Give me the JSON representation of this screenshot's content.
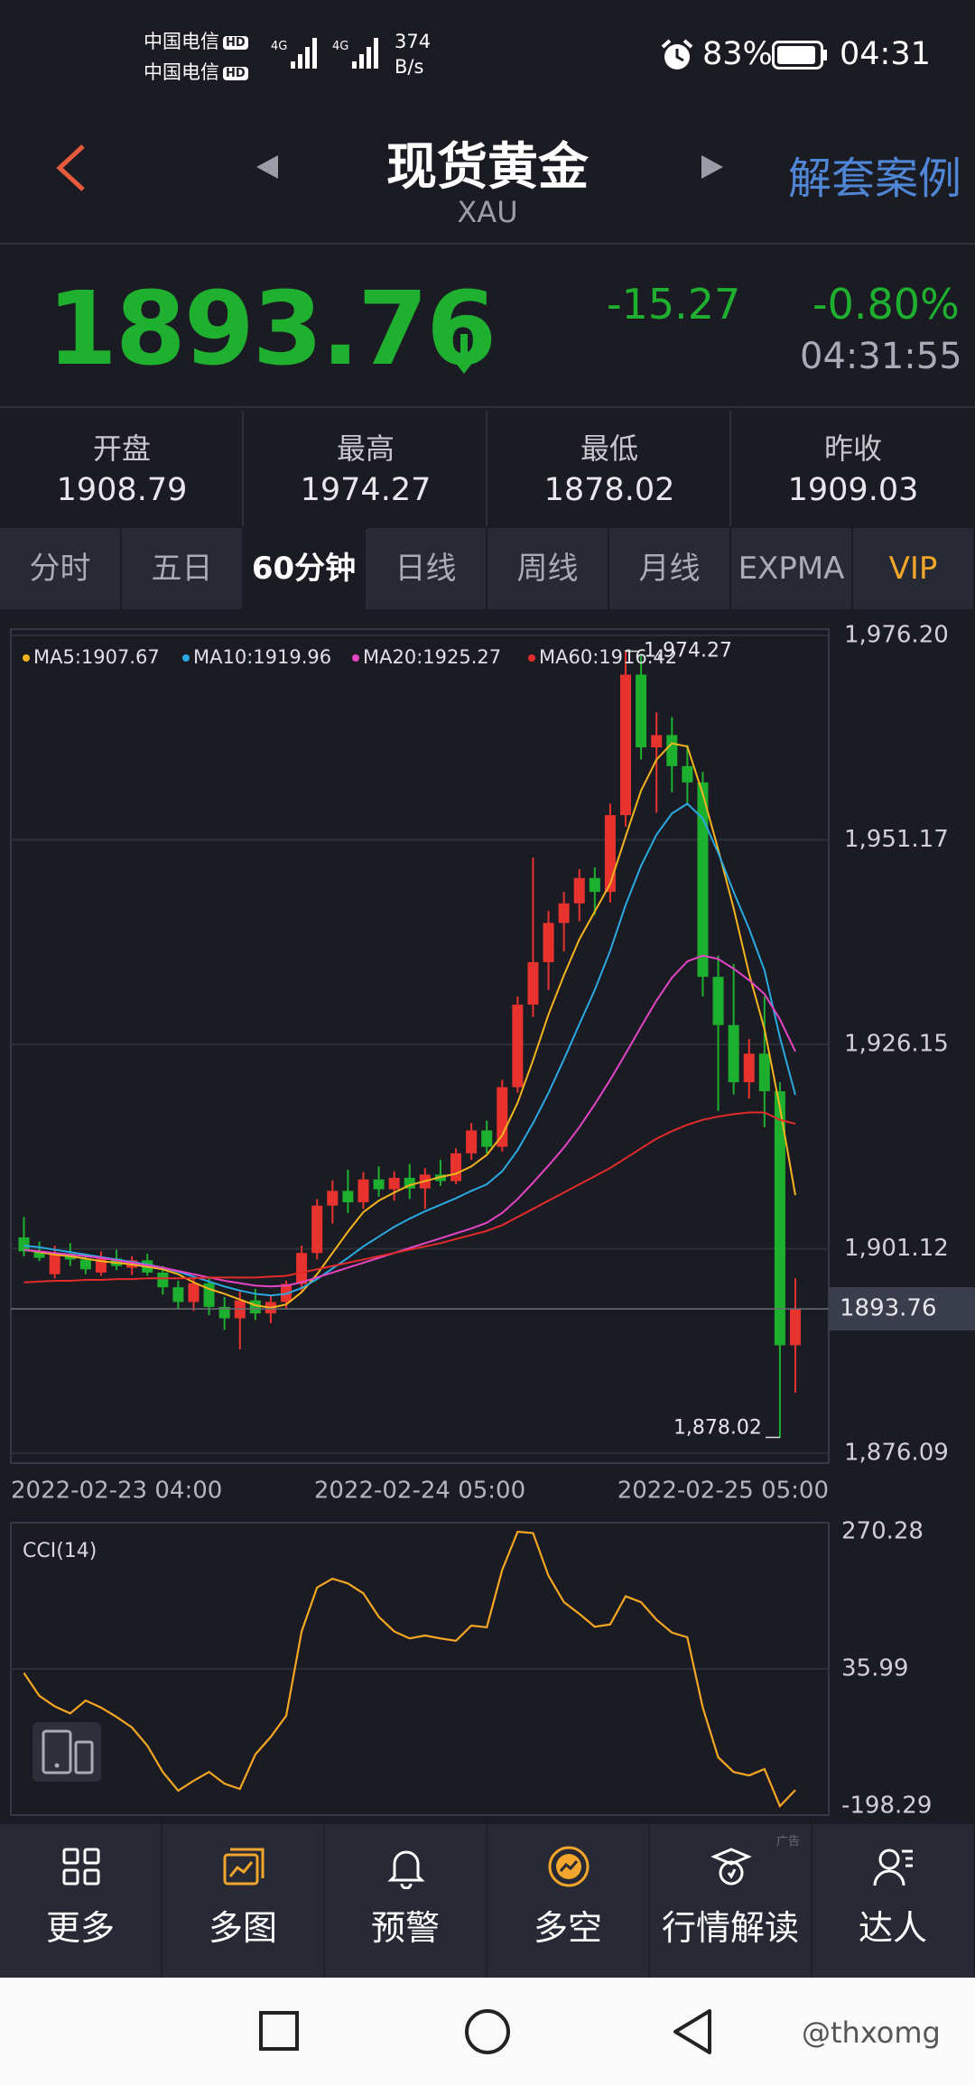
{
  "status_bar": {
    "carriers": [
      "中国电信",
      "中国电信"
    ],
    "hd": "HD",
    "net": "4G",
    "speed": "374",
    "speed_unit": "B/s",
    "battery": "83%",
    "time": "04:31"
  },
  "header": {
    "title": "现货黄金",
    "subtitle": "XAU",
    "action": "解套案例"
  },
  "quote": {
    "price": 1893.76,
    "change": -15.27,
    "change_pct": "-0.80%",
    "time": "04:31:55"
  },
  "stats": [
    {
      "label": "开盘",
      "value": "1908.79"
    },
    {
      "label": "最高",
      "value": "1974.27"
    },
    {
      "label": "最低",
      "value": "1878.02"
    },
    {
      "label": "昨收",
      "value": "1909.03"
    }
  ],
  "tabs": [
    "分时",
    "五日",
    "60分钟",
    "日线",
    "周线",
    "月线",
    "EXPMA",
    "VIP"
  ],
  "chart_data": [
    {
      "type": "candlestick",
      "up_color": "#e8322e",
      "down_color": "#1db02f",
      "ylim": [
        1876.09,
        1976.2
      ],
      "yticks": [
        {
          "value": 1976.2,
          "label": "1,976.20"
        },
        {
          "value": 1951.17,
          "label": "1,951.17"
        },
        {
          "value": 1926.15,
          "label": "1,926.15"
        },
        {
          "value": 1901.12,
          "label": "1,901.12"
        },
        {
          "value": 1876.09,
          "label": "1,876.09"
        }
      ],
      "xticks": [
        "2022-02-23 04:00",
        "2022-02-24 05:00",
        "2022-02-25 05:00"
      ],
      "grid": true,
      "ohlc": [
        [
          1902.5,
          1905.0,
          1900.2,
          1900.8
        ],
        [
          1900.8,
          1902.0,
          1899.6,
          1900.0
        ],
        [
          1898.0,
          1901.5,
          1897.5,
          1900.5
        ],
        [
          1900.5,
          1901.8,
          1899.0,
          1899.8
        ],
        [
          1899.8,
          1900.5,
          1898.0,
          1898.6
        ],
        [
          1898.2,
          1900.8,
          1897.8,
          1899.9
        ],
        [
          1899.9,
          1901.0,
          1898.5,
          1899.0
        ],
        [
          1898.8,
          1900.2,
          1897.9,
          1899.7
        ],
        [
          1899.7,
          1900.5,
          1897.8,
          1898.2
        ],
        [
          1898.2,
          1899.0,
          1895.5,
          1896.4
        ],
        [
          1896.4,
          1897.2,
          1893.8,
          1894.6
        ],
        [
          1894.6,
          1897.8,
          1893.5,
          1896.9
        ],
        [
          1896.9,
          1897.5,
          1893.0,
          1894.0
        ],
        [
          1894.0,
          1895.2,
          1891.2,
          1892.6
        ],
        [
          1892.6,
          1896.0,
          1888.8,
          1894.8
        ],
        [
          1894.8,
          1896.2,
          1892.4,
          1893.2
        ],
        [
          1893.2,
          1895.5,
          1892.0,
          1894.6
        ],
        [
          1894.6,
          1897.2,
          1893.8,
          1896.8
        ],
        [
          1896.8,
          1901.5,
          1895.8,
          1900.6
        ],
        [
          1900.6,
          1907.2,
          1899.8,
          1906.4
        ],
        [
          1906.4,
          1909.5,
          1904.2,
          1908.2
        ],
        [
          1908.2,
          1910.8,
          1905.5,
          1906.8
        ],
        [
          1906.8,
          1910.5,
          1906.0,
          1909.6
        ],
        [
          1909.6,
          1911.2,
          1907.5,
          1908.4
        ],
        [
          1908.4,
          1910.6,
          1907.0,
          1909.8
        ],
        [
          1909.8,
          1911.5,
          1907.2,
          1908.5
        ],
        [
          1908.5,
          1911.0,
          1906.0,
          1910.2
        ],
        [
          1910.2,
          1912.0,
          1908.8,
          1909.4
        ],
        [
          1909.4,
          1913.4,
          1909.0,
          1912.8
        ],
        [
          1912.8,
          1916.5,
          1912.0,
          1915.6
        ],
        [
          1915.6,
          1916.8,
          1912.8,
          1913.6
        ],
        [
          1913.6,
          1921.8,
          1913.0,
          1920.9
        ],
        [
          1920.9,
          1932.0,
          1920.2,
          1931.0
        ],
        [
          1931.0,
          1949.0,
          1929.5,
          1936.2
        ],
        [
          1936.2,
          1942.5,
          1932.8,
          1941.0
        ],
        [
          1941.0,
          1944.8,
          1937.5,
          1943.4
        ],
        [
          1943.4,
          1947.6,
          1941.2,
          1946.5
        ],
        [
          1946.5,
          1947.8,
          1942.0,
          1944.8
        ],
        [
          1944.8,
          1955.6,
          1943.5,
          1954.2
        ],
        [
          1954.2,
          1974.27,
          1952.8,
          1971.4
        ],
        [
          1971.4,
          1973.8,
          1961.0,
          1962.5
        ],
        [
          1962.5,
          1966.8,
          1954.5,
          1964.0
        ],
        [
          1964.0,
          1966.2,
          1957.0,
          1960.2
        ],
        [
          1960.2,
          1962.8,
          1955.4,
          1958.2
        ],
        [
          1958.2,
          1959.5,
          1932.0,
          1934.4
        ],
        [
          1934.4,
          1937.0,
          1918.0,
          1928.5
        ],
        [
          1928.5,
          1936.0,
          1920.0,
          1921.5
        ],
        [
          1921.5,
          1926.8,
          1919.5,
          1925.0
        ],
        [
          1925.0,
          1932.0,
          1916.0,
          1920.4
        ],
        [
          1920.4,
          1921.5,
          1878.02,
          1889.3
        ],
        [
          1889.3,
          1897.5,
          1883.5,
          1893.76
        ]
      ],
      "series": [
        {
          "name": "MA5:1907.67",
          "color": "#f5b41e",
          "values": [
            1901.0,
            1900.7,
            1900.4,
            1900.2,
            1899.9,
            1899.6,
            1899.4,
            1899.2,
            1898.9,
            1898.6,
            1898.0,
            1897.0,
            1896.2,
            1895.6,
            1894.9,
            1894.2,
            1893.9,
            1894.3,
            1895.8,
            1898.0,
            1900.6,
            1903.2,
            1905.6,
            1907.0,
            1908.0,
            1908.9,
            1909.4,
            1909.9,
            1910.3,
            1911.2,
            1912.6,
            1915.0,
            1919.0,
            1924.2,
            1929.8,
            1934.6,
            1939.0,
            1942.4,
            1945.8,
            1951.6,
            1957.2,
            1961.0,
            1963.0,
            1962.6,
            1956.8,
            1950.0,
            1942.8,
            1934.8,
            1928.0,
            1918.4,
            1907.67
          ]
        },
        {
          "name": "MA10:1919.96",
          "color": "#2aa9e2",
          "values": [
            1901.5,
            1901.3,
            1901.0,
            1900.7,
            1900.4,
            1900.1,
            1899.8,
            1899.5,
            1899.2,
            1898.8,
            1898.3,
            1897.7,
            1897.1,
            1896.5,
            1896.0,
            1895.6,
            1895.4,
            1895.6,
            1896.3,
            1897.4,
            1898.7,
            1900.0,
            1901.4,
            1902.6,
            1903.8,
            1904.8,
            1905.7,
            1906.5,
            1907.3,
            1908.2,
            1909.0,
            1910.6,
            1913.2,
            1916.5,
            1920.2,
            1924.3,
            1928.6,
            1932.8,
            1937.6,
            1943.2,
            1948.0,
            1951.8,
            1954.4,
            1955.6,
            1953.8,
            1949.6,
            1944.8,
            1940.3,
            1935.2,
            1927.0,
            1919.96
          ]
        },
        {
          "name": "MA20:1925.27",
          "color": "#e445c6",
          "values": [
            1901.0,
            1900.8,
            1900.6,
            1900.4,
            1900.2,
            1900.0,
            1899.7,
            1899.4,
            1899.1,
            1898.8,
            1898.4,
            1898.0,
            1897.6,
            1897.2,
            1896.9,
            1896.6,
            1896.5,
            1896.6,
            1897.0,
            1897.6,
            1898.2,
            1898.8,
            1899.4,
            1900.0,
            1900.6,
            1901.2,
            1901.8,
            1902.4,
            1903.0,
            1903.6,
            1904.3,
            1905.5,
            1907.2,
            1909.2,
            1911.3,
            1913.5,
            1916.0,
            1918.8,
            1921.8,
            1925.0,
            1928.3,
            1931.5,
            1934.3,
            1936.3,
            1937.0,
            1936.6,
            1935.4,
            1934.0,
            1932.3,
            1929.2,
            1925.27
          ]
        },
        {
          "name": "MA60:1916.42",
          "color": "#e22b2b",
          "values": [
            1897.0,
            1897.1,
            1897.2,
            1897.2,
            1897.3,
            1897.3,
            1897.4,
            1897.4,
            1897.5,
            1897.5,
            1897.5,
            1897.5,
            1897.6,
            1897.6,
            1897.6,
            1897.6,
            1897.7,
            1897.8,
            1898.2,
            1898.6,
            1899.0,
            1899.4,
            1899.8,
            1900.2,
            1900.6,
            1901.0,
            1901.4,
            1901.8,
            1902.3,
            1902.8,
            1903.3,
            1904.0,
            1905.0,
            1906.0,
            1907.0,
            1908.0,
            1909.0,
            1910.0,
            1911.0,
            1912.2,
            1913.4,
            1914.6,
            1915.5,
            1916.3,
            1916.9,
            1917.3,
            1917.6,
            1917.8,
            1917.8,
            1916.9,
            1916.42
          ]
        }
      ],
      "annotations": [
        {
          "value": 1974.27,
          "label": "1,974.27"
        },
        {
          "value": 1878.02,
          "label": "1,878.02"
        }
      ]
    },
    {
      "type": "line",
      "title": "CCI(14)",
      "color": "#f5a623",
      "ylim": [
        -198.29,
        270.28
      ],
      "yticks": [
        270.28,
        35.99,
        -198.29
      ],
      "grid": true,
      "values": [
        29,
        -10,
        -28,
        -40,
        -18,
        -30,
        -46,
        -64,
        -95,
        -140,
        -172,
        -155,
        -140,
        -160,
        -169,
        -110,
        -80,
        -44,
        100,
        175,
        190,
        182,
        165,
        125,
        100,
        88,
        93,
        88,
        84,
        110,
        107,
        205,
        270.28,
        268,
        195,
        150,
        130,
        108,
        112,
        160,
        150,
        120,
        98,
        90,
        -30,
        -115,
        -140,
        -146,
        -135,
        -198.29,
        -171
      ]
    }
  ],
  "nav": [
    "更多",
    "多图",
    "预警",
    "多空",
    "行情解读",
    "达人"
  ],
  "ad_tag": "广告",
  "watermark": "@thxomg"
}
